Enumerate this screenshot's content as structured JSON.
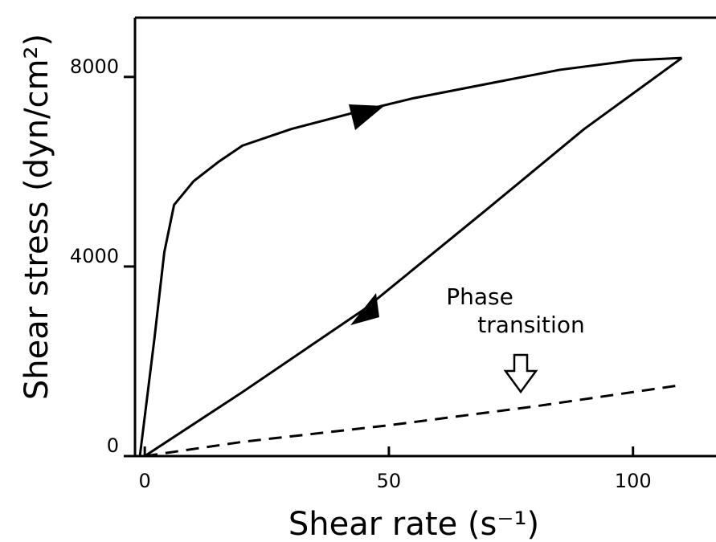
{
  "chart_data": {
    "type": "line",
    "xlabel": "Shear rate (s⁻¹)",
    "ylabel": "Shear stress (dyn/cm²)",
    "annotation": [
      "Phase",
      "transition"
    ],
    "xlim": [
      -2,
      117
    ],
    "ylim": [
      0,
      9250
    ],
    "xticks": [
      0,
      50,
      100
    ],
    "yticks": [
      0,
      4000,
      8000
    ],
    "series": [
      {
        "color": "#000000",
        "dashed": false,
        "x": [
          -1,
          2,
          4,
          6,
          10,
          15,
          20,
          30,
          43,
          55,
          70,
          85,
          100,
          110
        ],
        "values": [
          0,
          2500,
          4300,
          5300,
          5800,
          6200,
          6550,
          6900,
          7250,
          7550,
          7850,
          8150,
          8350,
          8400
        ]
      },
      {
        "color": "#000000",
        "dashed": false,
        "x": [
          110,
          90,
          70,
          45,
          20,
          0
        ],
        "values": [
          8400,
          6900,
          5200,
          3100,
          1350,
          0
        ]
      },
      {
        "color": "#000000",
        "dashed": true,
        "x": [
          0,
          20,
          50,
          80,
          110
        ],
        "values": [
          0,
          300,
          650,
          1050,
          1500
        ]
      }
    ]
  }
}
